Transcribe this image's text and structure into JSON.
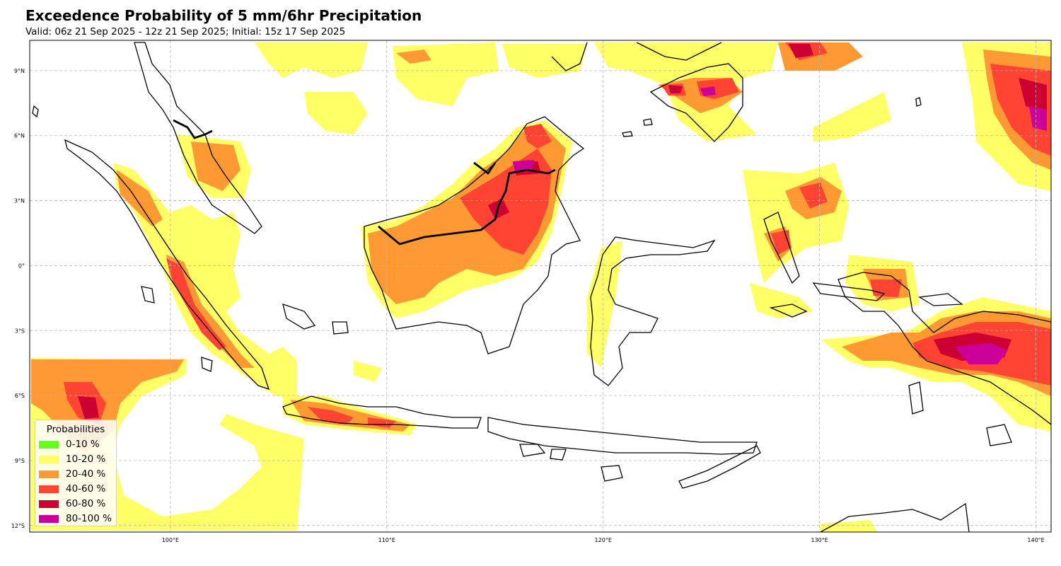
{
  "title": "Exceedence Probability of 5 mm/6hr Precipitation",
  "subtitle": "Valid: 06z 21 Sep 2025 - 12z 21 Sep 2025; Initial: 15z 17 Sep 2025",
  "map": {
    "lon_range": [
      93.5,
      140.7
    ],
    "lat_range": [
      -12.3,
      10.4
    ],
    "lon_ticks": [
      {
        "lon": 100,
        "label": "100°E"
      },
      {
        "lon": 110,
        "label": "110°E"
      },
      {
        "lon": 120,
        "label": "120°E"
      },
      {
        "lon": 130,
        "label": "130°E"
      },
      {
        "lon": 140,
        "label": "140°E"
      }
    ],
    "lat_ticks": [
      {
        "lat": 9,
        "label": "9°N"
      },
      {
        "lat": 6,
        "label": "6°N"
      },
      {
        "lat": 3,
        "label": "3°N"
      },
      {
        "lat": 0,
        "label": "0°"
      },
      {
        "lat": -3,
        "label": "3°S"
      },
      {
        "lat": -6,
        "label": "6°S"
      },
      {
        "lat": -9,
        "label": "9°S"
      },
      {
        "lat": -12,
        "label": "12°S"
      }
    ],
    "gridlines": true,
    "coastline_color": "#000000"
  },
  "legend": {
    "title": "Probabilities",
    "placement": "lower-left",
    "items": [
      {
        "label": "0-10 %",
        "color": "#66ff1a"
      },
      {
        "label": "10-20 %",
        "color": "#ffff66"
      },
      {
        "label": "20-40 %",
        "color": "#ff9933"
      },
      {
        "label": "40-60 %",
        "color": "#ff4433"
      },
      {
        "label": "60-80 %",
        "color": "#cc0033"
      },
      {
        "label": "80-100 %",
        "color": "#cc0099"
      }
    ]
  }
}
